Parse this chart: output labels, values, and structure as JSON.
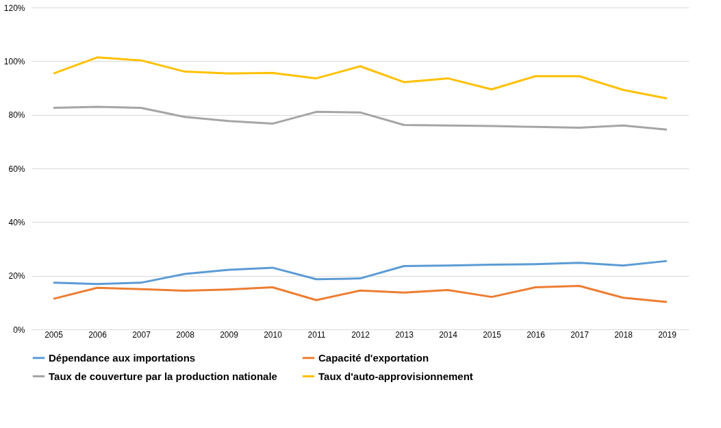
{
  "chart_data": {
    "type": "line",
    "categories": [
      "2005",
      "2006",
      "2007",
      "2008",
      "2009",
      "2010",
      "2011",
      "2012",
      "2013",
      "2014",
      "2015",
      "2016",
      "2017",
      "2018",
      "2019"
    ],
    "series": [
      {
        "name": "Dépendance aux importations",
        "color": "#5b9bd5",
        "values": [
          17.4,
          16.9,
          17.4,
          20.7,
          22.2,
          23.0,
          18.7,
          19.0,
          23.6,
          23.8,
          24.1,
          24.3,
          24.8,
          23.8,
          25.5
        ]
      },
      {
        "name": "Capacité d'exportation",
        "color": "#ed7d31",
        "values": [
          11.4,
          15.5,
          15.0,
          14.4,
          14.9,
          15.7,
          10.9,
          14.5,
          13.7,
          14.7,
          12.1,
          15.7,
          16.2,
          11.8,
          10.2
        ]
      },
      {
        "name": "Taux de couverture par la production nationale",
        "color": "#a5a5a5",
        "values": [
          82.6,
          83.0,
          82.6,
          79.2,
          77.7,
          76.7,
          81.1,
          80.9,
          76.2,
          76.0,
          75.8,
          75.5,
          75.2,
          76.0,
          74.5
        ]
      },
      {
        "name": "Taux d'auto-approvisionnement",
        "color": "#ffc000",
        "values": [
          95.4,
          101.4,
          100.3,
          96.1,
          95.4,
          95.6,
          93.6,
          98.1,
          92.2,
          93.6,
          89.5,
          94.4,
          94.4,
          89.3,
          86.1
        ]
      }
    ],
    "ylim": [
      0,
      120
    ],
    "yticks": [
      {
        "value": 0,
        "label": "0%"
      },
      {
        "value": 20,
        "label": "20%"
      },
      {
        "value": 40,
        "label": "40%"
      },
      {
        "value": 60,
        "label": "60%"
      },
      {
        "value": 80,
        "label": "80%"
      },
      {
        "value": 100,
        "label": "100%"
      },
      {
        "value": 120,
        "label": "120%"
      }
    ],
    "grid": "y",
    "legend": "bottom",
    "marker": "none",
    "line_style": "solid"
  }
}
